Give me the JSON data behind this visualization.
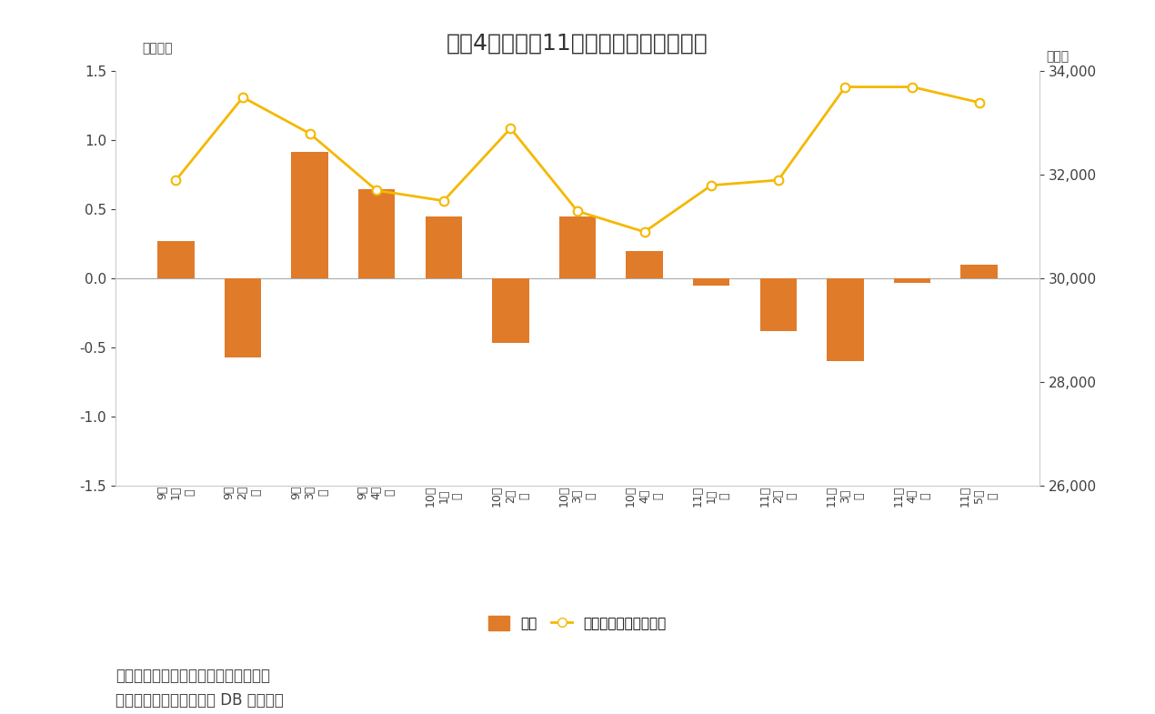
{
  "title": "図表4　個人は11月前半に大幅売り越し",
  "categories_line1": [
    "限",
    "限",
    "限",
    "限",
    "限",
    "限",
    "限",
    "限",
    "限",
    "限",
    "限",
    "限",
    "限"
  ],
  "categories_line2": [
    "1週",
    "2週",
    "3週",
    "4週",
    "1週",
    "2週",
    "3週",
    "4週",
    "1週",
    "2週",
    "3週",
    "4週",
    "5週"
  ],
  "categories_line3": [
    "9月",
    "9月",
    "9月",
    "9月",
    "10月",
    "10月",
    "10月",
    "10月",
    "11月",
    "11月",
    "11月",
    "11月",
    "11月"
  ],
  "bar_values": [
    0.27,
    -0.57,
    0.92,
    0.65,
    0.45,
    -0.47,
    0.45,
    0.2,
    -0.05,
    -0.38,
    -0.6,
    -0.03,
    0.1
  ],
  "line_values": [
    31900,
    33500,
    32800,
    31700,
    31500,
    32900,
    31300,
    30900,
    31800,
    31900,
    33700,
    33700,
    33400
  ],
  "bar_color": "#E07B2A",
  "line_color": "#F5B800",
  "marker_facecolor": "#FFFFFF",
  "marker_edgecolor": "#F5B800",
  "left_ylim": [
    -1.5,
    1.5
  ],
  "right_ylim": [
    26000,
    34000
  ],
  "left_yticks": [
    -1.5,
    -1.0,
    -0.5,
    0.0,
    0.5,
    1.0,
    1.5
  ],
  "right_yticks": [
    26000,
    28000,
    30000,
    32000,
    34000
  ],
  "left_ylabel": "（兆円）",
  "right_ylabel": "（円）",
  "legend_bar_label": "個人",
  "legend_line_label": "日経平均株価（右軸）",
  "note1": "（注）個人の現物と先物の合計、週次",
  "note2": "（資料）ニッセイ基礎研 DB から作成",
  "background_color": "#FFFFFF",
  "spine_color": "#CCCCCC",
  "text_color": "#404040"
}
